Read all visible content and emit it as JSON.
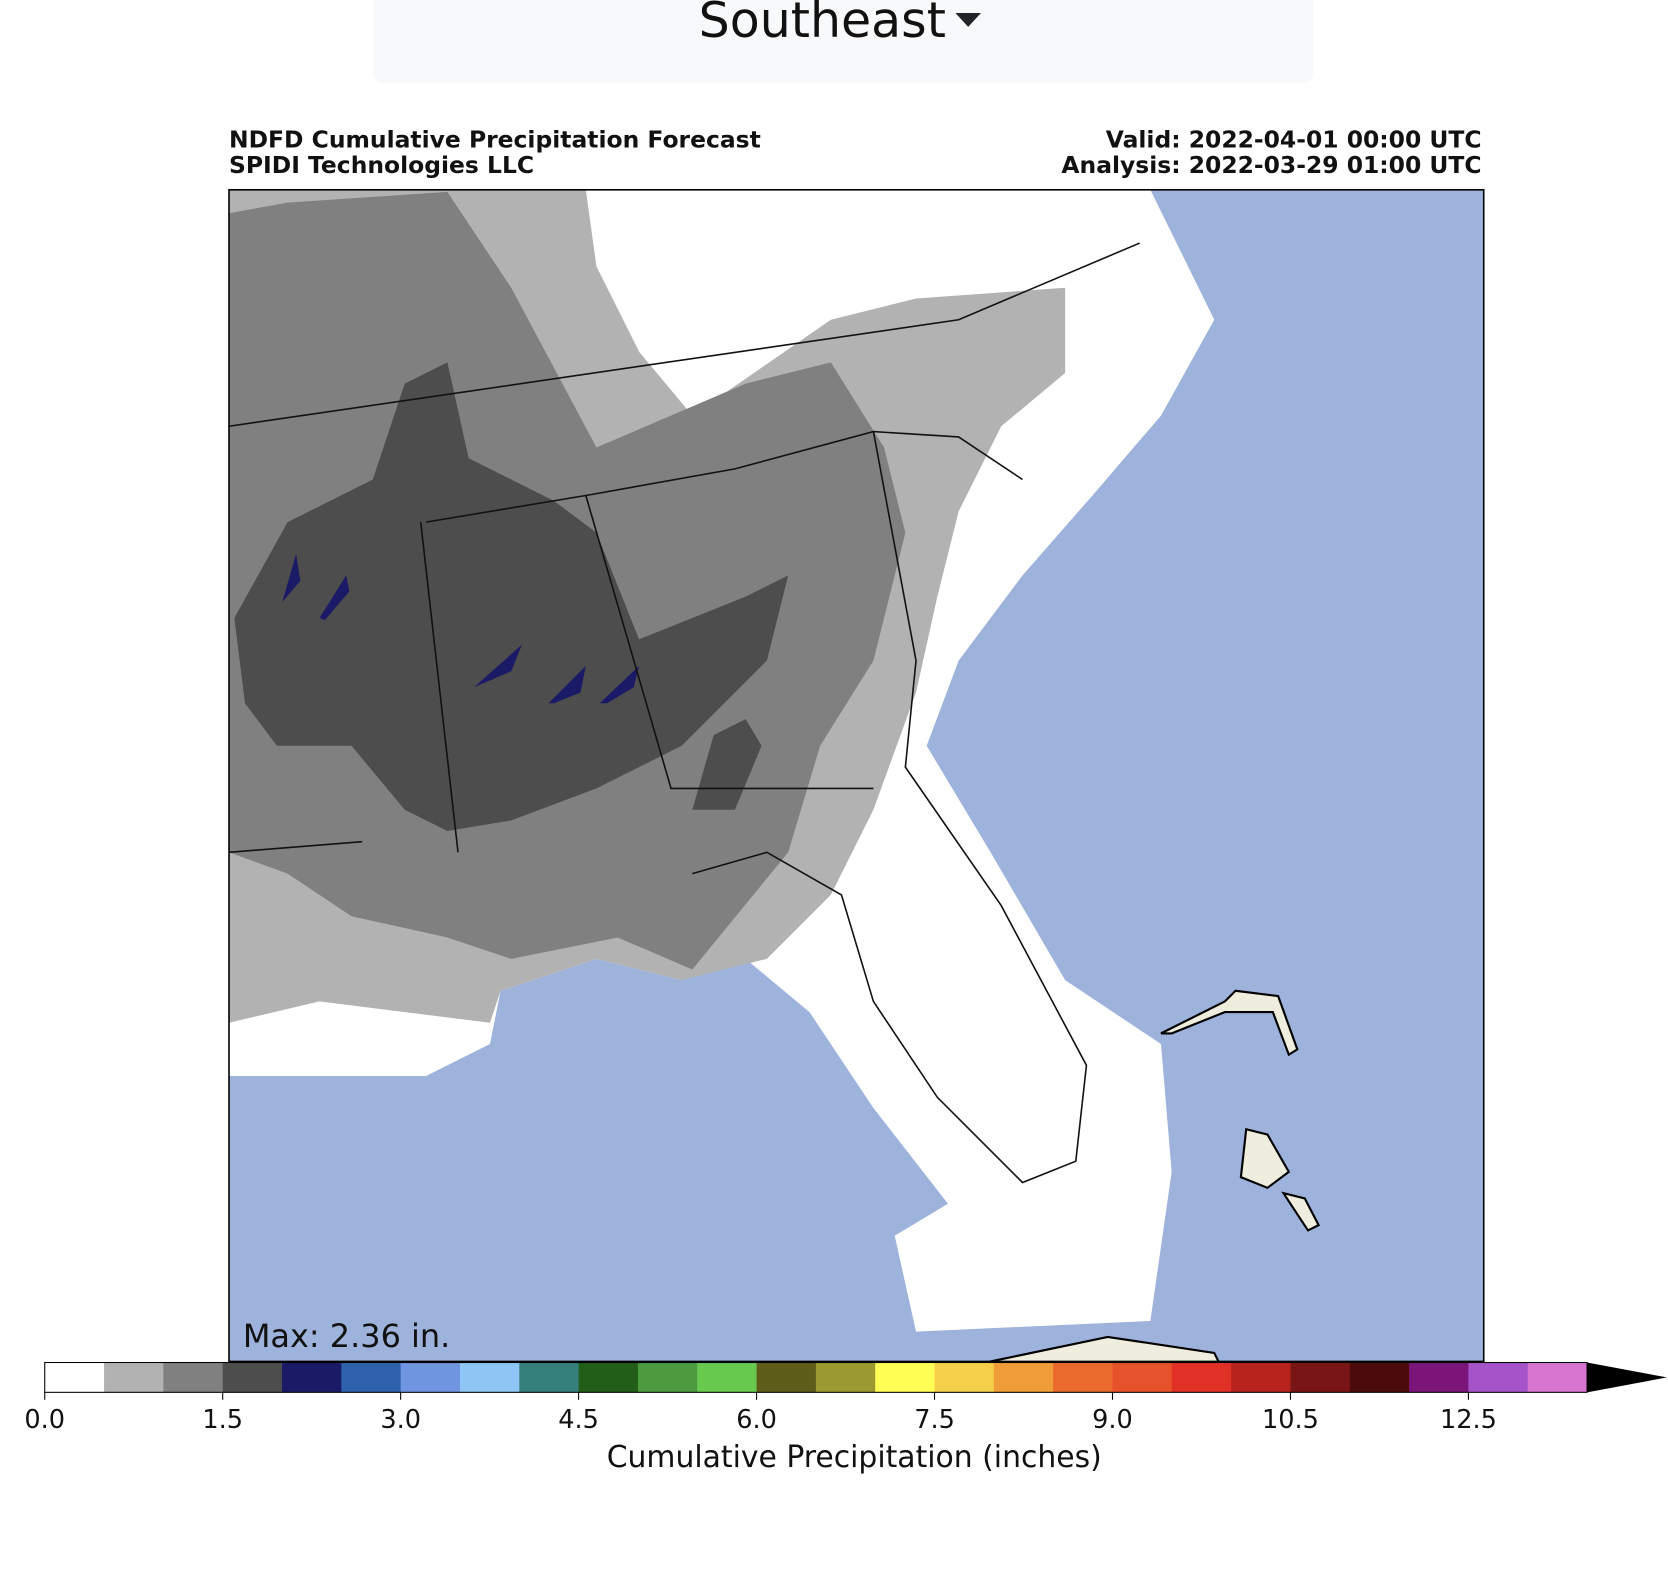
{
  "dropdown": {
    "label": "Southeast"
  },
  "header": {
    "title": "NDFD Cumulative Precipitation Forecast",
    "source": "SPIDI Technologies LLC",
    "valid": "Valid: 2022-04-01 00:00 UTC",
    "analysis": "Analysis: 2022-03-29 01:00 UTC"
  },
  "map": {
    "max_label": "Max: 2.36 in."
  },
  "colorbar": {
    "label": "Cumulative Precipitation (inches)",
    "bounds": [
      0,
      0.5,
      1,
      1.5,
      2,
      2.5,
      3,
      3.5,
      4,
      4.5,
      5,
      5.5,
      6,
      6.5,
      7,
      7.5,
      8,
      8.5,
      9,
      9.5,
      10,
      10.5,
      11,
      12,
      12.5,
      13,
      14
    ],
    "colors": [
      "#ffffff",
      "#b2b2b2",
      "#808080",
      "#4d4d4d",
      "#1a1a66",
      "#2f62ad",
      "#7095e0",
      "#8fc5f5",
      "#35807d",
      "#235e19",
      "#4e9a3f",
      "#68c94f",
      "#5e5e1a",
      "#9a9a30",
      "#ffff55",
      "#f5cf4a",
      "#f09c38",
      "#ea6a2e",
      "#e6522b",
      "#e13127",
      "#b8241d",
      "#7a1515",
      "#4d0a0a",
      "#7b1579",
      "#a453c9",
      "#d775d0"
    ],
    "extend_color": "#000000",
    "ticks": [
      {
        "value": 0,
        "label": "0.0"
      },
      1.5,
      {
        "value": 3,
        "label": "3.0"
      },
      4.5,
      {
        "value": 6,
        "label": "6.0"
      },
      7.5,
      {
        "value": 9,
        "label": "9.0"
      },
      10.5,
      12.5
    ]
  }
}
